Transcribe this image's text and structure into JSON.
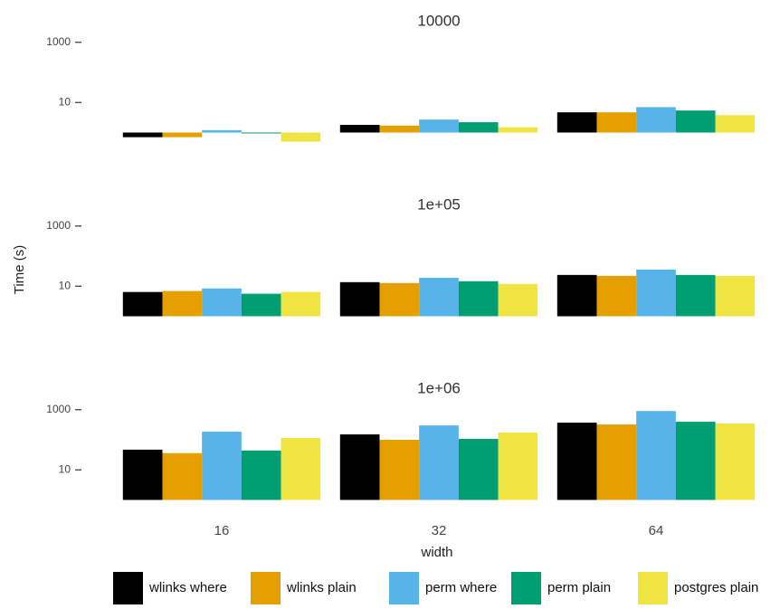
{
  "chart_data": {
    "type": "bar",
    "x_label": "width",
    "y_label": "Time (s)",
    "log_y": true,
    "ylim": [
      0.45,
      1600
    ],
    "yticks": [
      10,
      1000
    ],
    "legend": "bottom",
    "categories": [
      "16",
      "32",
      "64"
    ],
    "facets": [
      "10000",
      "1e+05",
      "1e+06"
    ],
    "series": [
      {
        "name": "wlinks where",
        "color": "#000000",
        "values": [
          [
            0.7,
            1.8,
            4.7
          ],
          [
            6.4,
            13.6,
            23.6
          ],
          [
            47,
            151,
            371
          ]
        ]
      },
      {
        "name": "wlinks plain",
        "color": "#e69f00",
        "values": [
          [
            0.7,
            1.7,
            4.7
          ],
          [
            6.9,
            12.7,
            22
          ],
          [
            36,
            100,
            323
          ]
        ]
      },
      {
        "name": "perm where",
        "color": "#56b4e9",
        "values": [
          [
            1.2,
            2.7,
            7
          ],
          [
            8.4,
            19,
            35.6
          ],
          [
            186,
            300,
            906
          ]
        ]
      },
      {
        "name": "perm plain",
        "color": "#009e73",
        "values": [
          [
            0.95,
            2.2,
            5.4
          ],
          [
            5.6,
            14.6,
            23.6
          ],
          [
            44,
            107,
            398
          ]
        ]
      },
      {
        "name": "postgres plain",
        "color": "#f0e442",
        "values": [
          [
            0.5,
            1.5,
            3.8
          ],
          [
            6.4,
            11.9,
            22
          ],
          [
            115,
            174,
            347
          ]
        ]
      }
    ]
  }
}
